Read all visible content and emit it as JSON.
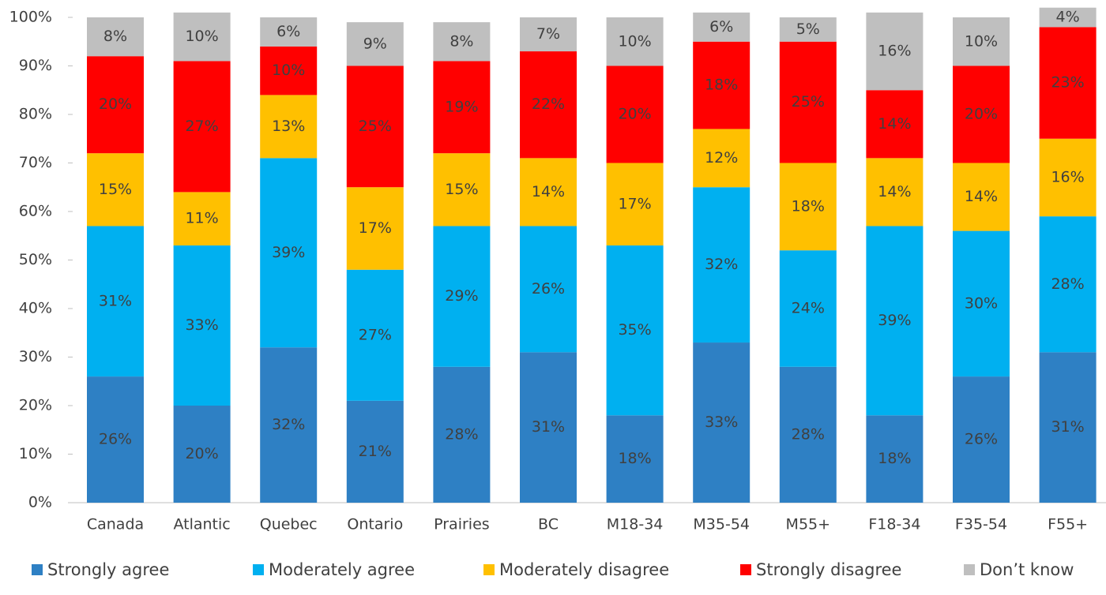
{
  "chart_data": {
    "type": "stacked_bar",
    "categories": [
      "Canada",
      "Atlantic",
      "Quebec",
      "Ontario",
      "Prairies",
      "BC",
      "M18-34",
      "M35-54",
      "M55+",
      "F18-34",
      "F35-54",
      "F55+"
    ],
    "series": [
      {
        "name": "Strongly agree",
        "color": "#2e80c4",
        "values": [
          26,
          20,
          32,
          21,
          28,
          31,
          18,
          33,
          28,
          18,
          26,
          31
        ],
        "value_labels": [
          "26%",
          "20%",
          "32%",
          "21%",
          "28%",
          "31%",
          "18%",
          "33%",
          "28%",
          "18%",
          "26%",
          "31%"
        ]
      },
      {
        "name": "Moderately agree",
        "color": "#00b0f0",
        "values": [
          31,
          33,
          39,
          27,
          29,
          26,
          35,
          32,
          24,
          39,
          30,
          28
        ],
        "value_labels": [
          "31%",
          "33%",
          "39%",
          "27%",
          "29%",
          "26%",
          "35%",
          "32%",
          "24%",
          "39%",
          "30%",
          "28%"
        ]
      },
      {
        "name": "Moderately disagree",
        "color": "#ffc000",
        "values": [
          15,
          11,
          13,
          17,
          15,
          14,
          17,
          12,
          18,
          14,
          14,
          16
        ],
        "value_labels": [
          "15%",
          "11%",
          "13%",
          "17%",
          "15%",
          "14%",
          "17%",
          "12%",
          "18%",
          "14%",
          "14%",
          "16%"
        ]
      },
      {
        "name": "Strongly disagree",
        "color": "#ff0000",
        "values": [
          20,
          27,
          10,
          25,
          19,
          22,
          20,
          18,
          25,
          14,
          20,
          23
        ],
        "value_labels": [
          "20%",
          "27%",
          "10%",
          "25%",
          "19%",
          "22%",
          "20%",
          "18%",
          "25%",
          "14%",
          "20%",
          "23%"
        ]
      },
      {
        "name": "Don’t know",
        "color": "#bfbfbf",
        "values": [
          8,
          10,
          6,
          9,
          8,
          7,
          10,
          6,
          5,
          16,
          10,
          4
        ],
        "value_labels": [
          "8%",
          "10%",
          "6%",
          "9%",
          "8%",
          "7%",
          "10%",
          "6%",
          "5%",
          "16%",
          "10%",
          "4%"
        ]
      }
    ],
    "ylim": [
      0,
      100
    ],
    "yticks": [
      {
        "value": 0,
        "label": "0%"
      },
      {
        "value": 10,
        "label": "10%"
      },
      {
        "value": 20,
        "label": "20%"
      },
      {
        "value": 30,
        "label": "30%"
      },
      {
        "value": 40,
        "label": "40%"
      },
      {
        "value": 50,
        "label": "50%"
      },
      {
        "value": 60,
        "label": "60%"
      },
      {
        "value": 70,
        "label": "70%"
      },
      {
        "value": 80,
        "label": "80%"
      },
      {
        "value": 90,
        "label": "90%"
      },
      {
        "value": 100,
        "label": "100%"
      }
    ],
    "grid": false,
    "legend": "bottom"
  }
}
